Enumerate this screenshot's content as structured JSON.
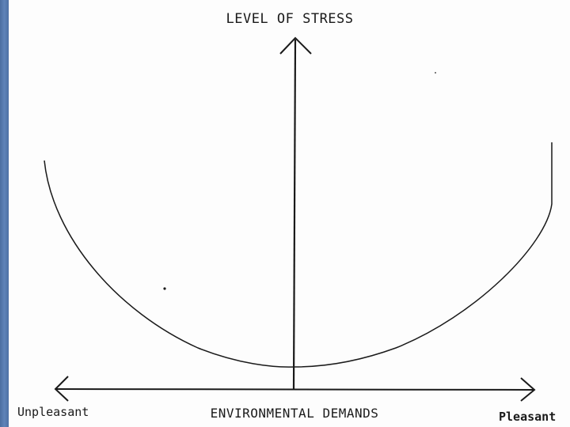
{
  "diagram": {
    "y_axis_label": "LEVEL OF STRESS",
    "x_axis_label": "ENVIRONMENTAL DEMANDS",
    "x_axis_left_end": "Unpleasant",
    "x_axis_right_end": "Pleasant",
    "curve_shape": "u-shaped",
    "colors": {
      "ink": "#1a1a1a",
      "side_bar": "#5577aa",
      "background": "#fdfdfd"
    }
  }
}
